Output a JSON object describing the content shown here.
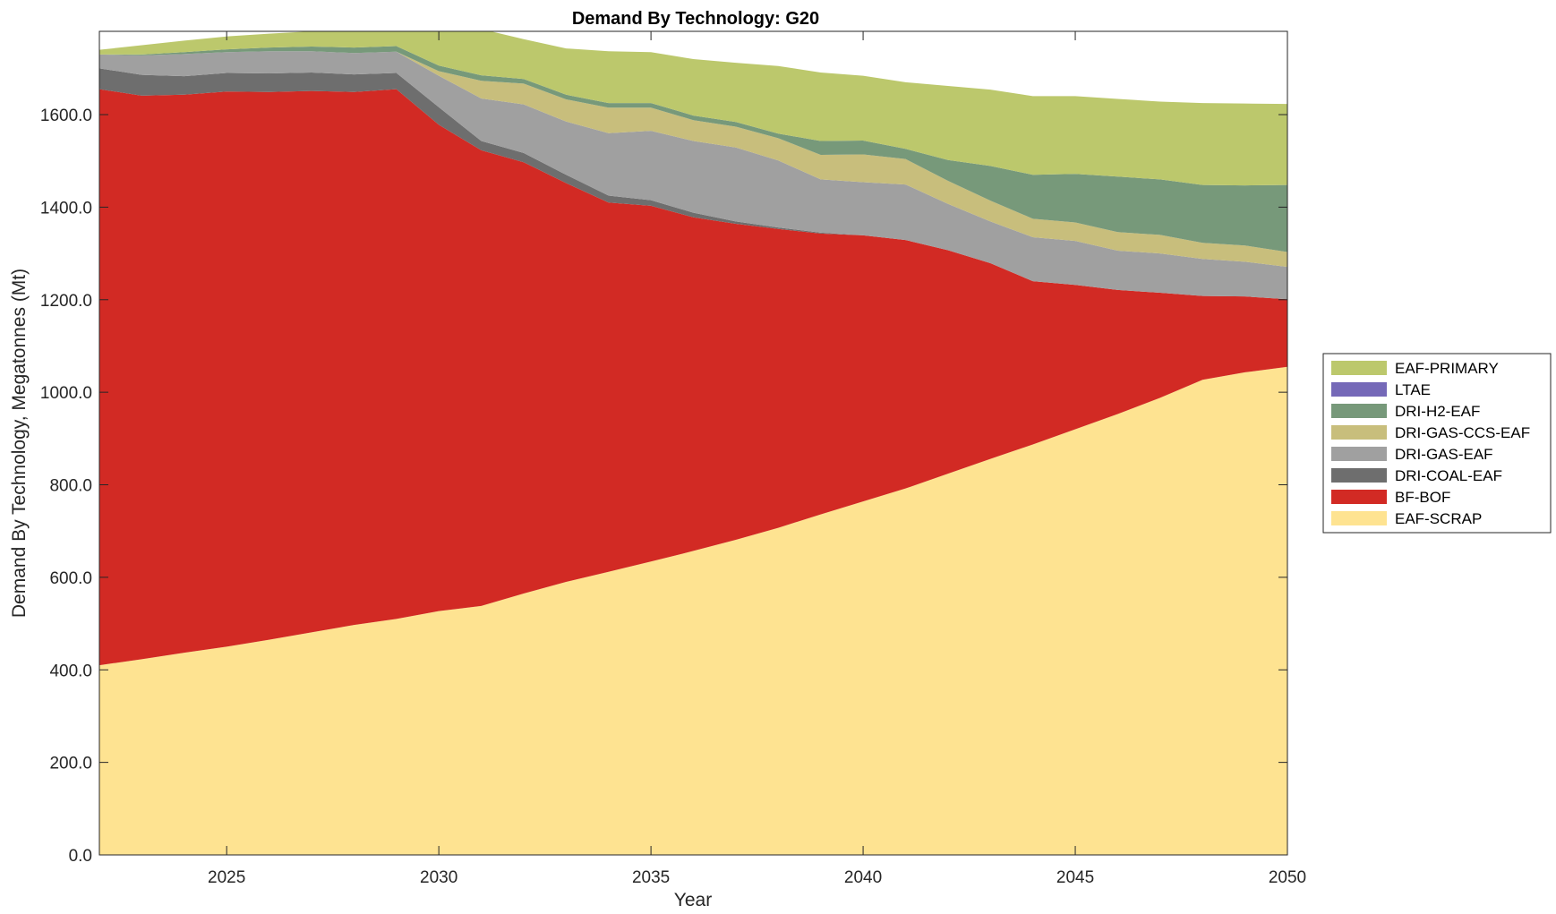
{
  "chart_data": {
    "type": "area",
    "stacked": true,
    "title": "Demand By Technology: G20",
    "xlabel": "Year",
    "ylabel": "Demand By Technology, Megatonnes (Mt)",
    "xlim": [
      2022,
      2050
    ],
    "ylim": [
      0,
      1780
    ],
    "xticks": [
      "2025",
      "2030",
      "2035",
      "2040",
      "2045",
      "2050"
    ],
    "yticks": [
      "0.0",
      "200.0",
      "400.0",
      "600.0",
      "800.0",
      "1000.0",
      "1200.0",
      "1400.0",
      "1600.0"
    ],
    "legend_position": "right",
    "grid": false,
    "x": [
      2022,
      2023,
      2024,
      2025,
      2026,
      2027,
      2028,
      2029,
      2030,
      2031,
      2032,
      2033,
      2034,
      2035,
      2036,
      2037,
      2038,
      2039,
      2040,
      2041,
      2042,
      2043,
      2044,
      2045,
      2046,
      2047,
      2048,
      2049,
      2050
    ],
    "series": [
      {
        "name": "EAF-SCRAP",
        "color": "#fee391",
        "values": [
          410,
          423,
          437,
          450,
          465,
          481,
          497,
          510,
          527,
          538,
          565,
          590,
          612,
          634,
          657,
          681,
          707,
          736,
          764,
          792,
          824,
          856,
          887,
          920,
          953,
          988,
          1027,
          1043,
          1055
        ]
      },
      {
        "name": "BF-BOF",
        "color": "#d22a24",
        "values": [
          1245,
          1218,
          1206,
          1200,
          1184,
          1170,
          1152,
          1145,
          1051,
          985,
          932,
          862,
          798,
          769,
          721,
          683,
          646,
          607,
          575,
          537,
          483,
          423,
          353,
          312,
          268,
          227,
          181,
          164,
          146
        ]
      },
      {
        "name": "DRI-COAL-EAF",
        "color": "#6e6e6e",
        "values": [
          45,
          45,
          40,
          40,
          40,
          40,
          38,
          35,
          38,
          20,
          20,
          18,
          15,
          12,
          10,
          5,
          3,
          2,
          0,
          0,
          0,
          0,
          0,
          0,
          0,
          0,
          0,
          0,
          0
        ]
      },
      {
        "name": "DRI-GAS-EAF",
        "color": "#a0a0a0",
        "values": [
          30,
          42,
          48,
          45,
          48,
          46,
          46,
          46,
          68,
          92,
          105,
          115,
          135,
          150,
          155,
          160,
          145,
          115,
          115,
          120,
          100,
          90,
          95,
          95,
          85,
          85,
          80,
          75,
          70
        ]
      },
      {
        "name": "DRI-GAS-CCS-EAF",
        "color": "#c8be7c",
        "values": [
          0,
          0,
          0,
          0,
          0,
          0,
          0,
          0,
          10,
          38,
          45,
          48,
          55,
          50,
          45,
          45,
          48,
          53,
          60,
          55,
          50,
          45,
          40,
          40,
          40,
          40,
          35,
          35,
          32
        ]
      },
      {
        "name": "DRI-H2-EAF",
        "color": "#77997a",
        "values": [
          0,
          2,
          4,
          6,
          8,
          10,
          12,
          12,
          12,
          12,
          10,
          10,
          10,
          10,
          10,
          10,
          10,
          30,
          30,
          22,
          45,
          75,
          95,
          105,
          120,
          120,
          125,
          130,
          145
        ]
      },
      {
        "name": "LTAE",
        "color": "#7569b8",
        "values": [
          0,
          0,
          0,
          0,
          0,
          0,
          0,
          0,
          0,
          0,
          0,
          0,
          0,
          0,
          0,
          0,
          0,
          0,
          0,
          0,
          0,
          0,
          0,
          0,
          0,
          0,
          0,
          0,
          0
        ]
      },
      {
        "name": "EAF-PRIMARY",
        "color": "#bcc86c",
        "values": [
          10,
          20,
          25,
          28,
          30,
          33,
          35,
          32,
          74,
          100,
          86,
          100,
          112,
          110,
          122,
          128,
          146,
          148,
          140,
          144,
          160,
          165,
          170,
          168,
          168,
          168,
          177,
          177,
          175
        ]
      }
    ]
  }
}
